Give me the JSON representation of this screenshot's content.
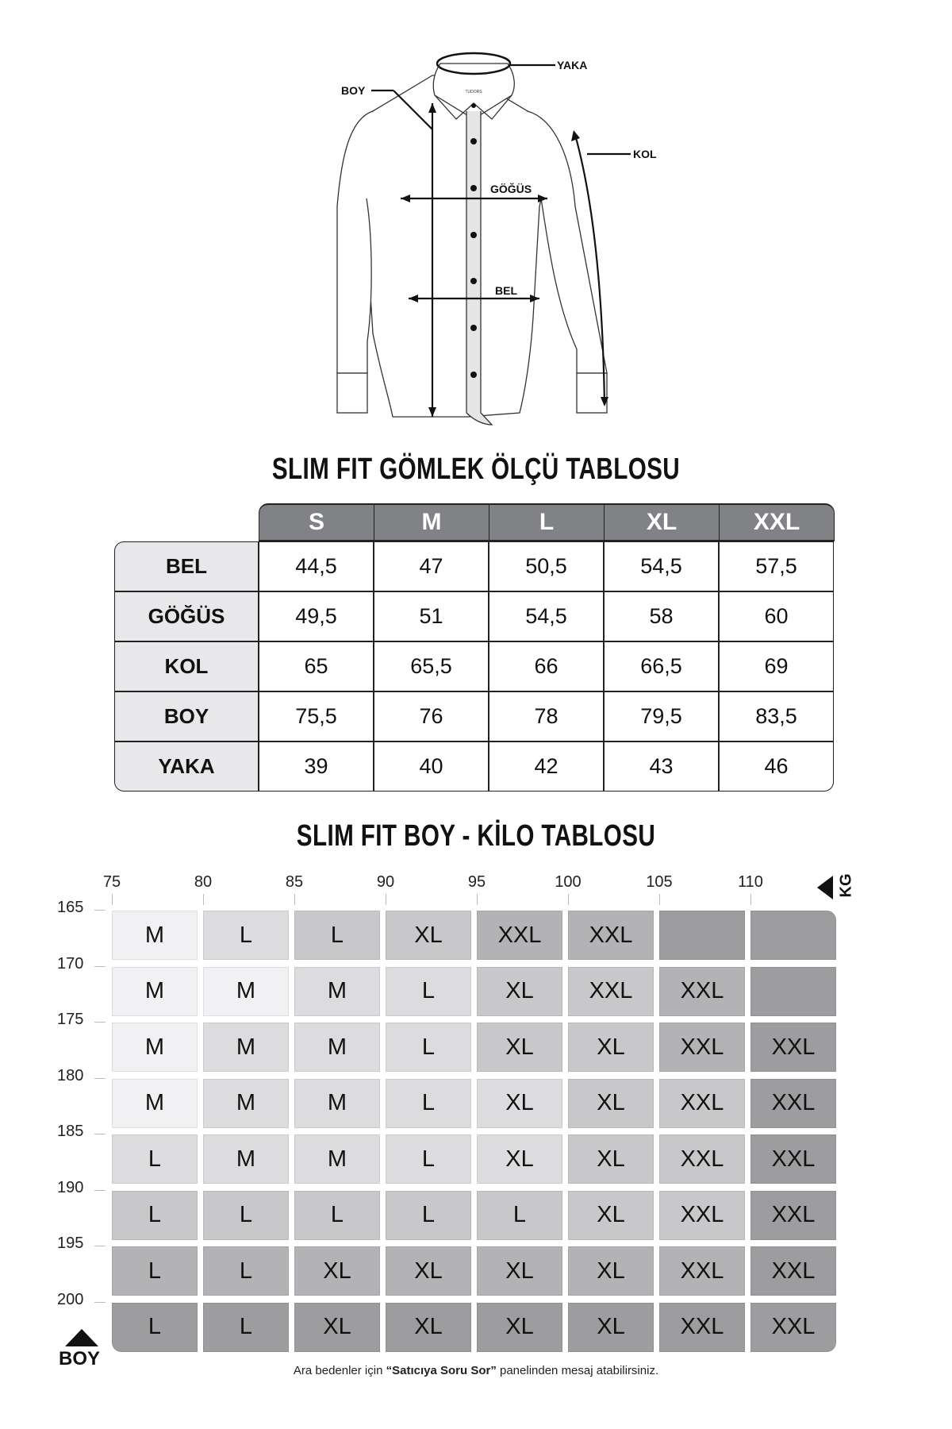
{
  "diagram": {
    "labels": {
      "yaka": "YAKA",
      "boy": "BOY",
      "kol": "KOL",
      "gogus": "GÖĞÜS",
      "bel": "BEL",
      "brand": "TUDORS"
    }
  },
  "size_table": {
    "title": "SLIM FIT GÖMLEK ÖLÇÜ TABLOSU",
    "sizes": [
      "S",
      "M",
      "L",
      "XL",
      "XXL"
    ],
    "rows": [
      {
        "label": "BEL",
        "values": [
          "44,5",
          "47",
          "50,5",
          "54,5",
          "57,5"
        ]
      },
      {
        "label": "GÖĞÜS",
        "values": [
          "49,5",
          "51",
          "54,5",
          "58",
          "60"
        ]
      },
      {
        "label": "KOL",
        "values": [
          "65",
          "65,5",
          "66",
          "66,5",
          "69"
        ]
      },
      {
        "label": "BOY",
        "values": [
          "75,5",
          "76",
          "78",
          "79,5",
          "83,5"
        ]
      },
      {
        "label": "YAKA",
        "values": [
          "39",
          "40",
          "42",
          "43",
          "46"
        ]
      }
    ]
  },
  "weight_table": {
    "title": "SLIM FIT BOY - KİLO TABLOSU",
    "x_axis_label": "KG",
    "y_axis_label": "BOY",
    "kg_ticks": [
      "75",
      "80",
      "85",
      "90",
      "95",
      "100",
      "105",
      "110"
    ],
    "height_ticks": [
      "165",
      "170",
      "175",
      "180",
      "185",
      "190",
      "195",
      "200"
    ],
    "shade_colors": [
      "#f1f1f3",
      "#dcdcde",
      "#c8c8ca",
      "#b3b3b6",
      "#9d9da0"
    ],
    "rows": [
      {
        "cells": [
          "M",
          "L",
          "L",
          "XL",
          "XXL",
          "XXL",
          "",
          ""
        ],
        "shades": [
          0,
          1,
          2,
          2,
          3,
          3,
          4,
          4
        ]
      },
      {
        "cells": [
          "M",
          "M",
          "M",
          "L",
          "XL",
          "XXL",
          "XXL",
          ""
        ],
        "shades": [
          0,
          0,
          1,
          1,
          2,
          2,
          3,
          4
        ]
      },
      {
        "cells": [
          "M",
          "M",
          "M",
          "L",
          "XL",
          "XL",
          "XXL",
          "XXL"
        ],
        "shades": [
          0,
          1,
          1,
          1,
          2,
          2,
          3,
          4
        ]
      },
      {
        "cells": [
          "M",
          "M",
          "M",
          "L",
          "XL",
          "XL",
          "XXL",
          "XXL"
        ],
        "shades": [
          0,
          1,
          1,
          1,
          1,
          2,
          2,
          4
        ]
      },
      {
        "cells": [
          "L",
          "M",
          "M",
          "L",
          "XL",
          "XL",
          "XXL",
          "XXL"
        ],
        "shades": [
          1,
          1,
          1,
          1,
          1,
          2,
          2,
          4
        ]
      },
      {
        "cells": [
          "L",
          "L",
          "L",
          "L",
          "L",
          "XL",
          "XXL",
          "XXL"
        ],
        "shades": [
          2,
          2,
          2,
          2,
          2,
          2,
          2,
          4
        ]
      },
      {
        "cells": [
          "L",
          "L",
          "XL",
          "XL",
          "XL",
          "XL",
          "XXL",
          "XXL"
        ],
        "shades": [
          3,
          3,
          3,
          3,
          3,
          3,
          3,
          4
        ]
      },
      {
        "cells": [
          "L",
          "L",
          "XL",
          "XL",
          "XL",
          "XL",
          "XXL",
          "XXL"
        ],
        "shades": [
          4,
          4,
          4,
          4,
          4,
          4,
          4,
          4
        ]
      }
    ]
  },
  "footer": {
    "pre": "Ara bedenler için ",
    "bold": "“Satıcıya Soru Sor”",
    "post": " panelinden mesaj atabilirsiniz."
  }
}
